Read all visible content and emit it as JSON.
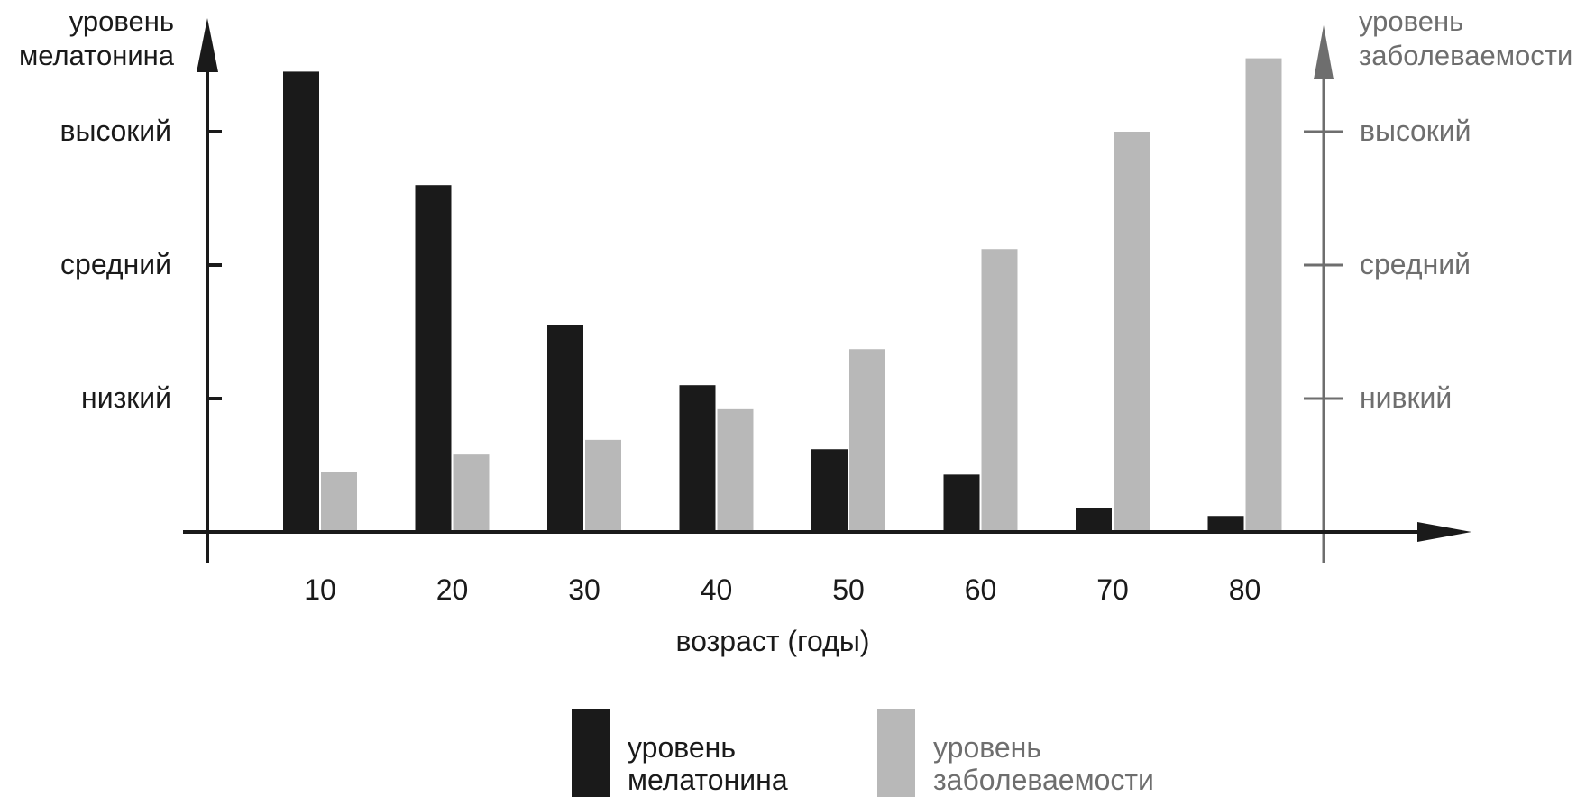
{
  "chart_data": {
    "type": "bar",
    "categories": [
      "10",
      "20",
      "30",
      "40",
      "50",
      "60",
      "70",
      "80"
    ],
    "xlabel": "возраст (годы)",
    "ylabel_left": [
      "уровень",
      "мелатонина"
    ],
    "ylabel_right": [
      "уровень",
      "заболеваемости"
    ],
    "left_ticks": [
      {
        "label": "низкий",
        "value": 1
      },
      {
        "label": "средний",
        "value": 2
      },
      {
        "label": "выcокий",
        "value": 3
      }
    ],
    "right_ticks": [
      {
        "label": "нивкий",
        "value": 1
      },
      {
        "label": "средний",
        "value": 2
      },
      {
        "label": "выcокий",
        "value": 3
      }
    ],
    "ylim": [
      0,
      4
    ],
    "series": [
      {
        "name": "уровень мелатонина",
        "label_lines": [
          "уровень",
          "мелатонина"
        ],
        "color": "#1a1a1a",
        "axis": "left",
        "values": [
          3.45,
          2.6,
          1.55,
          1.1,
          0.62,
          0.43,
          0.18,
          0.12
        ]
      },
      {
        "name": "уровень заболеваемости",
        "label_lines": [
          "уровень",
          "заболеваемости"
        ],
        "color": "#b8b8b8",
        "axis": "right",
        "values": [
          0.45,
          0.58,
          0.69,
          0.92,
          1.37,
          2.12,
          3.0,
          3.55
        ]
      }
    ],
    "axis_colors": {
      "left": "#1a1a1a",
      "right": "#6e6e6e"
    },
    "legend_position": "bottom",
    "grid": false
  }
}
